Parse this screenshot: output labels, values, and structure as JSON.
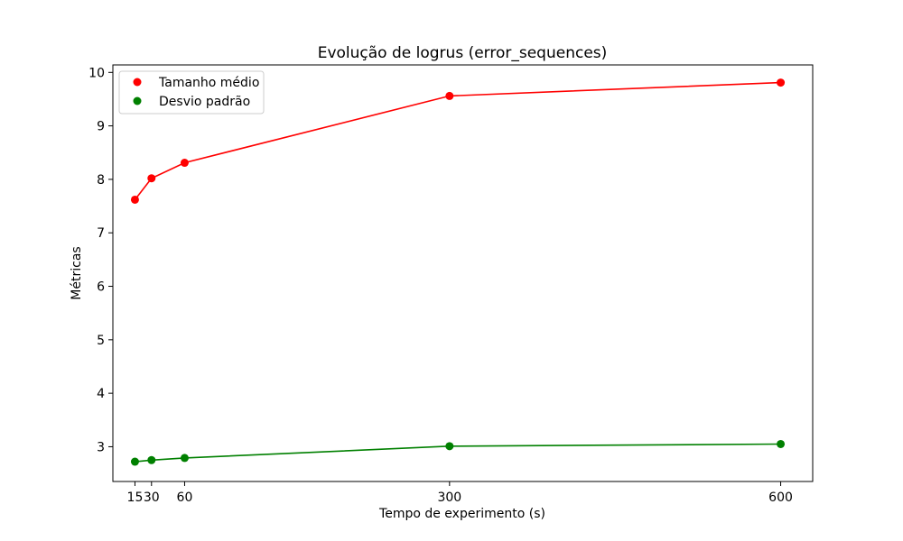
{
  "chart_data": {
    "type": "line",
    "title": "Evolução de logrus (error_sequences)",
    "xlabel": "Tempo de experimento (s)",
    "ylabel": "Métricas",
    "x": [
      15,
      30,
      60,
      300,
      600
    ],
    "x_ticks": [
      "15",
      "30",
      "60",
      "300",
      "600"
    ],
    "xlim": [
      -5,
      629
    ],
    "ylim": [
      2.35,
      10.14
    ],
    "y_ticks": [
      "3",
      "4",
      "5",
      "6",
      "7",
      "8",
      "9",
      "10"
    ],
    "y_tick_values": [
      3,
      4,
      5,
      6,
      7,
      8,
      9,
      10
    ],
    "grid": false,
    "legend_position": "top-left",
    "series": [
      {
        "name": "Tamanho médio",
        "color": "#ff0000",
        "values": [
          7.62,
          8.02,
          8.31,
          9.56,
          9.81
        ]
      },
      {
        "name": "Desvio padrão",
        "color": "#008000",
        "values": [
          2.72,
          2.75,
          2.79,
          3.01,
          3.05
        ]
      }
    ]
  }
}
